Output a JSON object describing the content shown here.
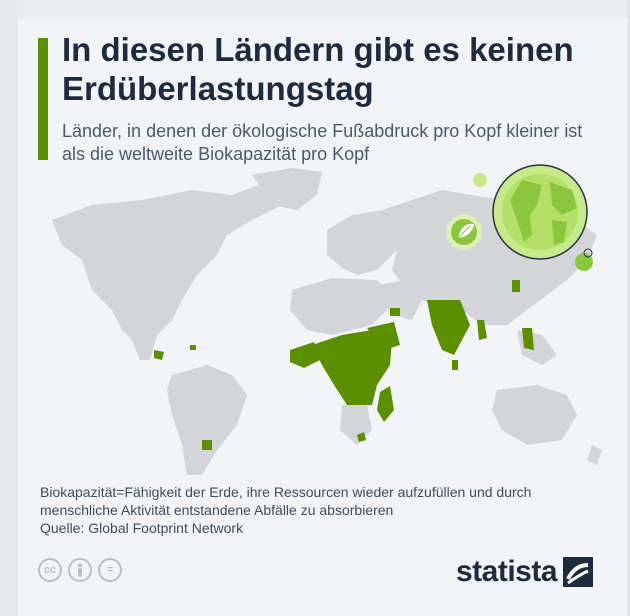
{
  "title": "In diesen Ländern gibt es keinen Erdüberlastungstag",
  "subtitle": "Länder, in denen der ökologische Fußabdruck pro Kopf kleiner ist als die weltweite Biokapazität pro Kopf",
  "footnote": "Biokapazität=Fähigkeit der Erde, ihre Ressourcen wieder aufzufüllen und durch menschliche Aktivität entstandene Abfälle zu absorbieren",
  "source": "Quelle: Global Footprint Network",
  "brand": "statista",
  "license_icons": [
    "cc-icon",
    "person-icon",
    "equals-icon"
  ],
  "colors": {
    "accent": "#5a8f00",
    "highlight_country": "#5a8f00",
    "other_country": "#d3d5d8",
    "globe": "#c6e98a",
    "brand": "#1c2b3f"
  }
}
